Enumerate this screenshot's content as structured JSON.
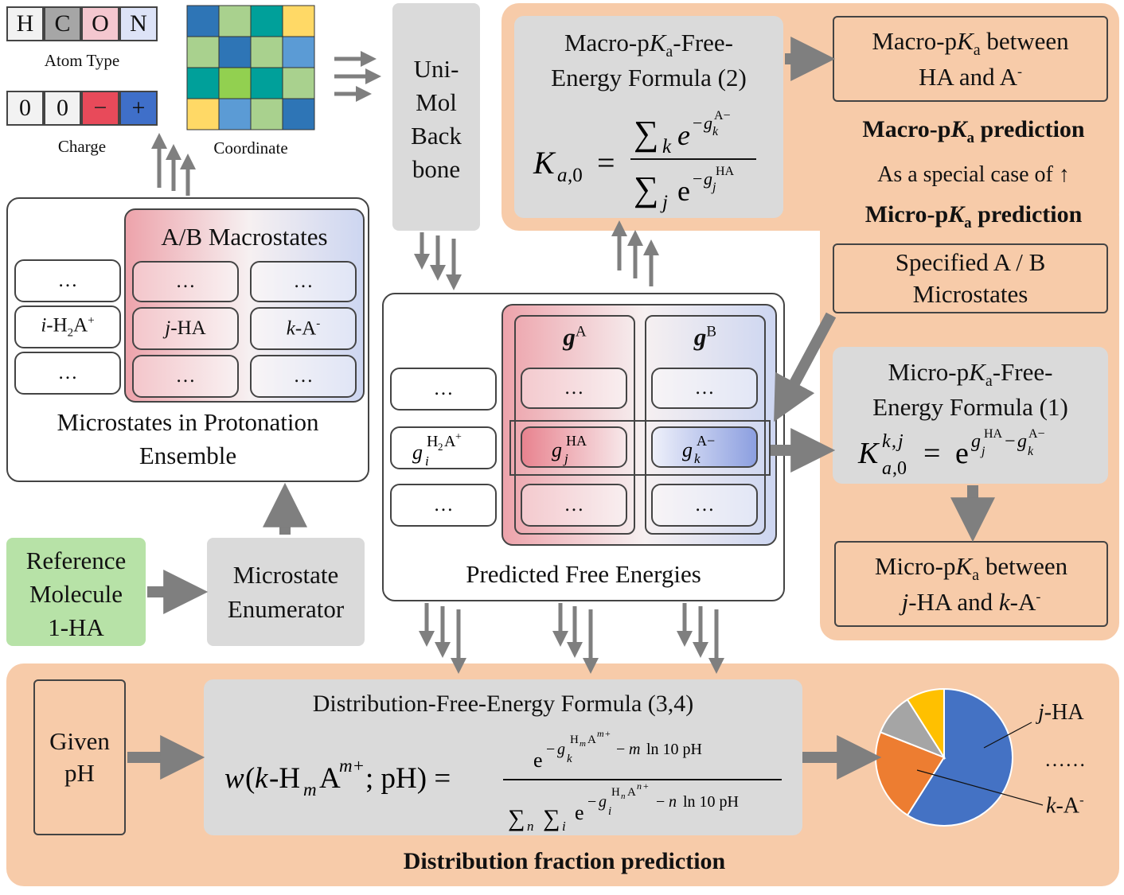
{
  "atom_type": {
    "cells": [
      "H",
      "C",
      "O",
      "N"
    ],
    "label": "Atom Type"
  },
  "charge": {
    "cells": [
      "0",
      "0",
      "−",
      "+"
    ],
    "label": "Charge"
  },
  "coordinate": {
    "label": "Coordinate"
  },
  "unimol": {
    "line1": "Uni-",
    "line2": "Mol",
    "line3": "Back",
    "line4": "bone"
  },
  "macro_formula": {
    "title1": "Macro-p",
    "title_k": "K",
    "title_sub": "a",
    "title2": "-Free-",
    "title3": "Energy Formula (2)"
  },
  "macro_result": {
    "line1_a": "Macro-p",
    "line1_k": "K",
    "line1_sub": "a",
    "line1_b": " between",
    "line2": "HA and A",
    "line2_sup": "-"
  },
  "macro_prediction": {
    "a": "Macro-p",
    "k": "K",
    "sub": "a",
    "b": " prediction"
  },
  "special_case": "As a special case of ↑",
  "micro_prediction": {
    "a": "Micro-p",
    "k": "K",
    "sub": "a",
    "b": " prediction"
  },
  "specified": {
    "line1": "Specified A / B",
    "line2": "Microstates"
  },
  "micro_formula": {
    "title1": "Micro-p",
    "title_k": "K",
    "title_sub": "a",
    "title2": "-Free-",
    "title3": "Energy Formula (1)"
  },
  "micro_result": {
    "line1_a": "Micro-p",
    "line1_k": "K",
    "line1_sub": "a",
    "line1_b": " between",
    "line2_j": "j",
    "line2_a": "-HA and ",
    "line2_k": "k",
    "line2_b": "-A",
    "line2_sup": "-"
  },
  "macrostates": {
    "title": "A/B Macrostates"
  },
  "microstates": {
    "ellipsis": "…",
    "i_label": {
      "i": "i",
      "rest": "-H",
      "sub": "2",
      "a": "A",
      "sup": "+"
    },
    "j_label": {
      "j": "j",
      "rest": "-HA"
    },
    "k_label": {
      "k": "k",
      "rest": "-A",
      "sup": "-"
    },
    "caption1": "Microstates in Protonation",
    "caption2": "Ensemble"
  },
  "reference": {
    "line1": "Reference",
    "line2": "Molecule",
    "line3": "1-HA"
  },
  "enumerator": {
    "line1": "Microstate",
    "line2": "Enumerator"
  },
  "free_energies": {
    "caption": "Predicted Free Energies",
    "gA": "A",
    "gB": "B"
  },
  "distribution": {
    "title": "Distribution-Free-Energy Formula (3,4)",
    "caption": "Distribution fraction prediction"
  },
  "given_ph": {
    "line1": "Given",
    "line2": "pH"
  },
  "pie": {
    "label_j": "j",
    "label_j_rest": "-HA",
    "label_dots": "……",
    "label_k": "k",
    "label_k_rest": "-A",
    "label_k_sup": "-"
  },
  "chart_data": {
    "type": "pie",
    "values": [
      59,
      22,
      10,
      9
    ],
    "colors": [
      "#4472c4",
      "#ed7d31",
      "#a5a5a5",
      "#ffc000"
    ]
  }
}
